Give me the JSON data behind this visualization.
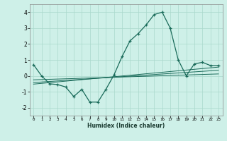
{
  "xlabel": "Humidex (Indice chaleur)",
  "background_color": "#cef0e8",
  "grid_color": "#aad8cc",
  "line_color": "#1a6b5a",
  "xlim": [
    -0.5,
    23.5
  ],
  "ylim": [
    -2.5,
    4.5
  ],
  "yticks": [
    -2,
    -1,
    0,
    1,
    2,
    3,
    4
  ],
  "xticks": [
    0,
    1,
    2,
    3,
    4,
    5,
    6,
    7,
    8,
    9,
    10,
    11,
    12,
    13,
    14,
    15,
    16,
    17,
    18,
    19,
    20,
    21,
    22,
    23
  ],
  "main_x": [
    0,
    1,
    2,
    3,
    4,
    5,
    6,
    7,
    8,
    9,
    10,
    11,
    12,
    13,
    14,
    15,
    16,
    17,
    18,
    19,
    20,
    21,
    22,
    23
  ],
  "main_y": [
    0.7,
    0.0,
    -0.5,
    -0.55,
    -0.7,
    -1.3,
    -0.85,
    -1.65,
    -1.65,
    -0.85,
    0.05,
    1.2,
    2.2,
    2.65,
    3.2,
    3.85,
    4.0,
    3.0,
    1.0,
    0.0,
    0.75,
    0.85,
    0.65,
    0.65
  ],
  "trend1_x": [
    0,
    23
  ],
  "trend1_y": [
    -0.25,
    0.12
  ],
  "trend2_x": [
    0,
    23
  ],
  "trend2_y": [
    -0.42,
    0.35
  ],
  "trend3_x": [
    0,
    23
  ],
  "trend3_y": [
    -0.52,
    0.55
  ]
}
